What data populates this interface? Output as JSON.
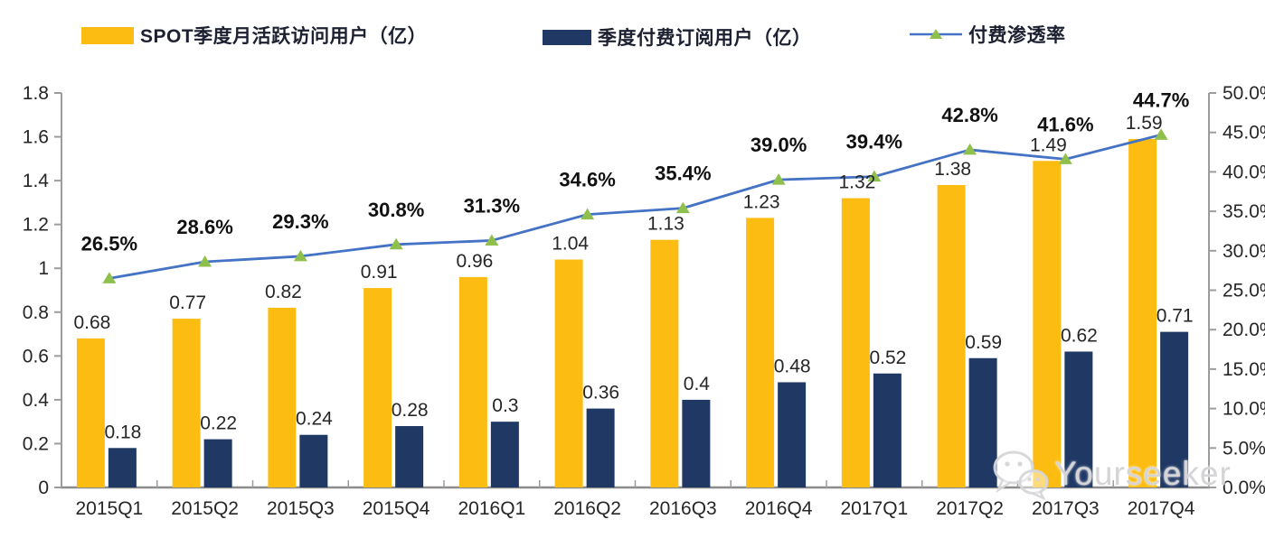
{
  "legend": [
    {
      "label": "SPOT季度月活跃访问用户（亿）",
      "color": "#FCBC12",
      "type": "bar"
    },
    {
      "label": "季度付费订阅用户（亿）",
      "color": "#1F3864",
      "type": "bar"
    },
    {
      "label": "付费渗透率",
      "color": "#4472C4",
      "marker_color": "#8FBF4D",
      "type": "line"
    }
  ],
  "chart_data": {
    "type": "bar",
    "subtype": "grouped-bars-with-line-combo",
    "title": "",
    "xlabel": "",
    "ylabel": "",
    "grid": false,
    "legend_position": "top",
    "categories": [
      "2015Q1",
      "2015Q2",
      "2015Q3",
      "2015Q4",
      "2016Q1",
      "2016Q2",
      "2016Q3",
      "2016Q4",
      "2017Q1",
      "2017Q2",
      "2017Q3",
      "2017Q4"
    ],
    "series": [
      {
        "name": "SPOT季度月活跃访问用户（亿）",
        "type": "bar",
        "axis": "left",
        "color": "#FCBC12",
        "values": [
          0.68,
          0.77,
          0.82,
          0.91,
          0.96,
          1.04,
          1.13,
          1.23,
          1.32,
          1.38,
          1.49,
          1.59
        ],
        "labels": [
          "0.68",
          "0.77",
          "0.82",
          "0.91",
          "0.96",
          "1.04",
          "1.13",
          "1.23",
          "1.32",
          "1.38",
          "1.49",
          "1.59"
        ]
      },
      {
        "name": "季度付费订阅用户（亿）",
        "type": "bar",
        "axis": "left",
        "color": "#1F3864",
        "values": [
          0.18,
          0.22,
          0.24,
          0.28,
          0.3,
          0.36,
          0.4,
          0.48,
          0.52,
          0.59,
          0.62,
          0.71
        ],
        "labels": [
          "0.18",
          "0.22",
          "0.24",
          "0.28",
          "0.3",
          "0.36",
          "0.4",
          "0.48",
          "0.52",
          "0.59",
          "0.62",
          "0.71"
        ]
      },
      {
        "name": "付费渗透率",
        "type": "line",
        "axis": "right",
        "color": "#4472C4",
        "marker": "triangle-up",
        "marker_color": "#8FBF4D",
        "values": [
          26.5,
          28.6,
          29.3,
          30.8,
          31.3,
          34.6,
          35.4,
          39.0,
          39.4,
          42.8,
          41.6,
          44.7
        ],
        "labels": [
          "26.5%",
          "28.6%",
          "29.3%",
          "30.8%",
          "31.3%",
          "34.6%",
          "35.4%",
          "39.0%",
          "39.4%",
          "42.8%",
          "41.6%",
          "44.7%"
        ]
      }
    ],
    "left_axis": {
      "min": 0,
      "max": 1.8,
      "step": 0.2,
      "tick_labels": [
        "0",
        "0.2",
        "0.4",
        "0.6",
        "0.8",
        "1",
        "1.2",
        "1.4",
        "1.6",
        "1.8"
      ]
    },
    "right_axis": {
      "min": 0,
      "max": 50,
      "step": 5,
      "tick_labels": [
        "0.0%",
        "5.0%",
        "10.0%",
        "15.0%",
        "20.0%",
        "25.0%",
        "30.0%",
        "35.0%",
        "40.0%",
        "45.0%",
        "50.0%"
      ]
    },
    "axis_color": "#9c9c9c",
    "tick_label_color": "#262626",
    "value_label_color": "#262626",
    "pct_label_color": "#111111"
  },
  "watermark": {
    "text": "Yourseeker",
    "icon": "wechat-icon"
  }
}
